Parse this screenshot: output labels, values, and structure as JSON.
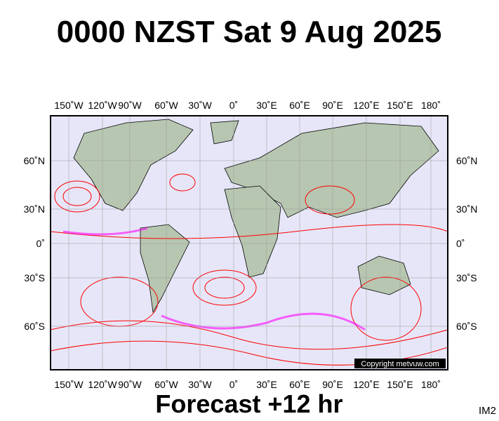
{
  "header": {
    "title": "0000 NZST Sat 9 Aug 2025"
  },
  "map": {
    "lon_labels": [
      "150˚W",
      "120˚W",
      "90˚W",
      "60˚W",
      "30˚W",
      "0˚",
      "30˚E",
      "60˚E",
      "90˚E",
      "120˚E",
      "150˚E",
      "180˚"
    ],
    "lat_labels": [
      "60˚N",
      "30˚N",
      "0˚",
      "30˚S",
      "60˚S"
    ],
    "copyright": "Copyright metvuw.com"
  },
  "footer": {
    "forecast": "Forecast +12 hr",
    "image_id": "IM2"
  }
}
